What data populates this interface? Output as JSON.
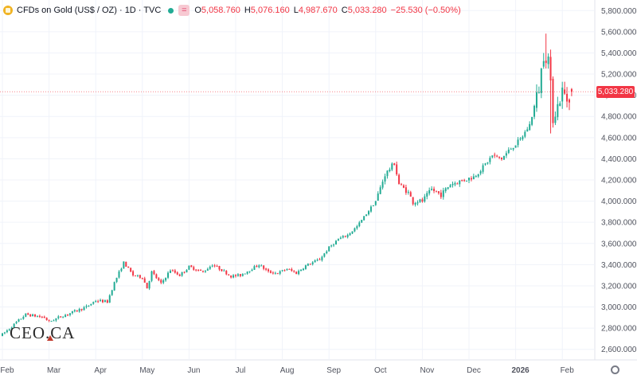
{
  "header": {
    "symbol_title": "CFDs on Gold (US$ / OZ) · 1D · TVC",
    "icons": [
      "gold-symbol-icon",
      "market-status-dot-icon",
      "compare-equals-icon"
    ],
    "ohlc": [
      {
        "key": "O",
        "value": "5,058.760"
      },
      {
        "key": "H",
        "value": "5,076.160"
      },
      {
        "key": "L",
        "value": "4,987.670"
      },
      {
        "key": "C",
        "value": "5,033.280"
      }
    ],
    "change": "−25.530 (−0.50%)"
  },
  "colors": {
    "up": "#22ab94",
    "down": "#f23645",
    "grid": "#f0f3fa",
    "text": "#131722",
    "axis_text": "#50535e"
  },
  "watermark": "CEO.CA",
  "last_price_label": "5,033.280",
  "chart_data": {
    "type": "candlestick",
    "title": "",
    "xlabel": "",
    "ylabel": "",
    "y_axis": {
      "side": "right",
      "ylim": [
        2500,
        5900
      ],
      "ticks": [
        "2,600.000",
        "2,800.000",
        "3,000.000",
        "3,200.000",
        "3,400.000",
        "3,600.000",
        "3,800.000",
        "4,000.000",
        "4,200.000",
        "4,400.000",
        "4,600.000",
        "4,800.000",
        "5,000.000",
        "5,200.000",
        "5,400.000",
        "5,600.000",
        "5,800.000"
      ],
      "tick_values": [
        2600,
        2800,
        3000,
        3200,
        3400,
        3600,
        3800,
        4000,
        4200,
        4400,
        4600,
        4800,
        5000,
        5200,
        5400,
        5600,
        5800
      ]
    },
    "x_axis": {
      "labels": [
        "Feb",
        "Mar",
        "Apr",
        "May",
        "Jun",
        "Jul",
        "Aug",
        "Sep",
        "Oct",
        "Nov",
        "Dec",
        "2026",
        "Feb"
      ],
      "label_bar_index": [
        0,
        20,
        40,
        60,
        80,
        100,
        120,
        140,
        160,
        180,
        200,
        220,
        240
      ]
    },
    "grid": true,
    "last_price": 5033.28,
    "price_path": [
      [
        0,
        2740
      ],
      [
        10,
        2930
      ],
      [
        18,
        2900
      ],
      [
        20,
        2860
      ],
      [
        24,
        2900
      ],
      [
        30,
        2950
      ],
      [
        36,
        3000
      ],
      [
        40,
        3060
      ],
      [
        45,
        3050
      ],
      [
        48,
        3230
      ],
      [
        52,
        3420
      ],
      [
        56,
        3300
      ],
      [
        60,
        3280
      ],
      [
        62,
        3180
      ],
      [
        64,
        3330
      ],
      [
        68,
        3220
      ],
      [
        72,
        3350
      ],
      [
        76,
        3300
      ],
      [
        80,
        3380
      ],
      [
        86,
        3330
      ],
      [
        90,
        3400
      ],
      [
        94,
        3350
      ],
      [
        98,
        3290
      ],
      [
        102,
        3300
      ],
      [
        106,
        3350
      ],
      [
        110,
        3400
      ],
      [
        114,
        3330
      ],
      [
        118,
        3320
      ],
      [
        122,
        3360
      ],
      [
        126,
        3320
      ],
      [
        130,
        3390
      ],
      [
        136,
        3450
      ],
      [
        140,
        3560
      ],
      [
        144,
        3640
      ],
      [
        148,
        3680
      ],
      [
        152,
        3760
      ],
      [
        156,
        3880
      ],
      [
        160,
        4000
      ],
      [
        164,
        4250
      ],
      [
        168,
        4360
      ],
      [
        170,
        4160
      ],
      [
        174,
        4080
      ],
      [
        176,
        3990
      ],
      [
        178,
        4000
      ],
      [
        180,
        4000
      ],
      [
        184,
        4110
      ],
      [
        188,
        4060
      ],
      [
        192,
        4160
      ],
      [
        198,
        4200
      ],
      [
        202,
        4230
      ],
      [
        206,
        4320
      ],
      [
        210,
        4430
      ],
      [
        214,
        4400
      ],
      [
        218,
        4500
      ],
      [
        222,
        4580
      ],
      [
        224,
        4650
      ],
      [
        226,
        4720
      ],
      [
        230,
        5070
      ],
      [
        232,
        5390
      ],
      [
        234,
        5350
      ],
      [
        236,
        4800
      ],
      [
        238,
        4900
      ],
      [
        240,
        5040
      ],
      [
        242,
        4960
      ],
      [
        244,
        5033
      ]
    ]
  }
}
